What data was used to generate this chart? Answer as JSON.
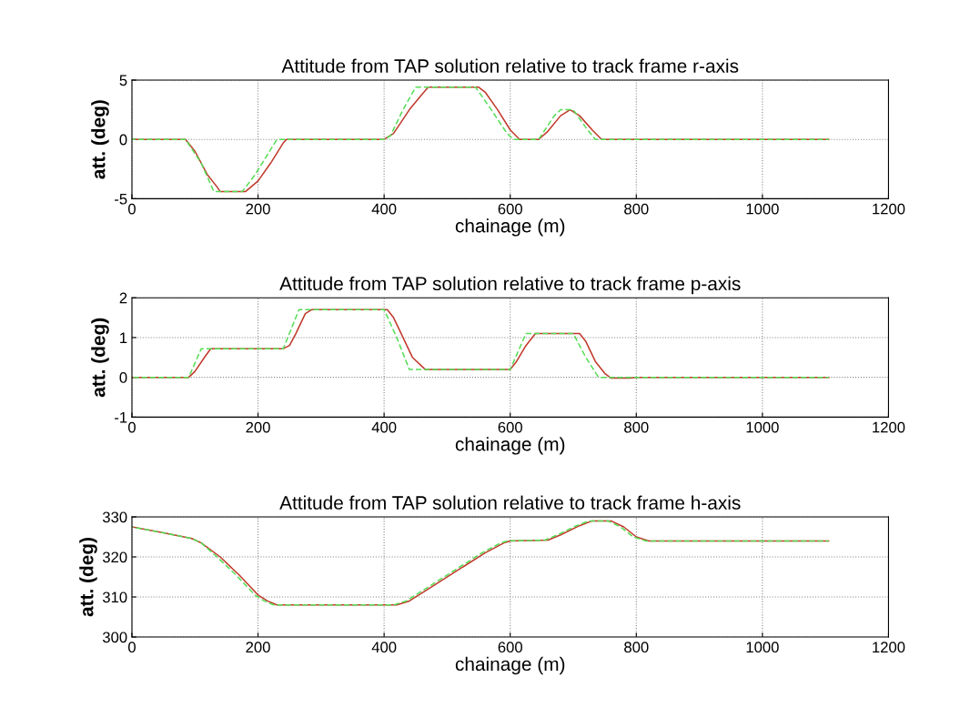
{
  "chart_data": [
    {
      "type": "line",
      "title": "Attitude from TAP solution relative to track frame r-axis",
      "xlabel": "chainage (m)",
      "ylabel": "att. (deg)",
      "xlim": [
        0,
        1200
      ],
      "ylim": [
        -5,
        5
      ],
      "xticks": [
        0,
        200,
        400,
        600,
        800,
        1000,
        1200
      ],
      "yticks": [
        -5,
        0,
        5
      ],
      "grid": true,
      "series": [
        {
          "color": "#c0392b",
          "line_style": "solid",
          "x": [
            0,
            85,
            100,
            120,
            135,
            140,
            180,
            200,
            220,
            240,
            245,
            400,
            415,
            440,
            460,
            470,
            550,
            560,
            580,
            600,
            615,
            645,
            660,
            680,
            695,
            710,
            730,
            745,
            1105
          ],
          "values": [
            0,
            0,
            -1,
            -3,
            -4,
            -4.4,
            -4.4,
            -3.5,
            -2,
            -0.3,
            0,
            0,
            0.5,
            2.5,
            3.8,
            4.4,
            4.4,
            4,
            2.5,
            0.8,
            0,
            0,
            0.7,
            2,
            2.5,
            2,
            0.8,
            0,
            0
          ]
        },
        {
          "color": "#55dd55",
          "line_style": "dashed",
          "x": [
            0,
            85,
            110,
            130,
            175,
            195,
            230,
            400,
            410,
            430,
            450,
            545,
            570,
            595,
            605,
            645,
            670,
            680,
            700,
            720,
            735,
            1105
          ],
          "values": [
            0,
            0,
            -2,
            -4.4,
            -4.4,
            -3,
            0,
            0,
            0.3,
            2.5,
            4.4,
            4.4,
            2.5,
            0.5,
            0,
            0,
            2,
            2.5,
            2.5,
            1,
            0,
            0
          ]
        }
      ]
    },
    {
      "type": "line",
      "title": "Attitude from TAP solution relative to track frame p-axis",
      "xlabel": "chainage (m)",
      "ylabel": "att. (deg)",
      "xlim": [
        0,
        1200
      ],
      "ylim": [
        -1,
        2
      ],
      "xticks": [
        0,
        200,
        400,
        600,
        800,
        1000,
        1200
      ],
      "yticks": [
        -1,
        0,
        1,
        2
      ],
      "grid": true,
      "series": [
        {
          "color": "#c0392b",
          "line_style": "solid",
          "x": [
            0,
            90,
            100,
            115,
            125,
            240,
            250,
            260,
            275,
            285,
            405,
            415,
            430,
            445,
            465,
            600,
            610,
            625,
            640,
            710,
            720,
            735,
            750,
            760,
            790,
            800,
            1105
          ],
          "values": [
            0,
            0,
            0.15,
            0.5,
            0.72,
            0.72,
            0.8,
            1.1,
            1.6,
            1.7,
            1.7,
            1.5,
            1,
            0.5,
            0.2,
            0.2,
            0.4,
            0.8,
            1.1,
            1.1,
            0.9,
            0.4,
            0.1,
            -0.02,
            -0.02,
            0,
            0
          ]
        },
        {
          "color": "#55dd55",
          "line_style": "dashed",
          "x": [
            0,
            90,
            110,
            240,
            265,
            400,
            420,
            440,
            600,
            625,
            700,
            720,
            740,
            1105
          ],
          "values": [
            0,
            0,
            0.72,
            0.72,
            1.7,
            1.7,
            1,
            0.2,
            0.2,
            1.1,
            1.1,
            0.5,
            0,
            0
          ]
        }
      ]
    },
    {
      "type": "line",
      "title": "Attitude from TAP solution relative to track frame h-axis",
      "xlabel": "chainage (m)",
      "ylabel": "att. (deg)",
      "xlim": [
        0,
        1200
      ],
      "ylim": [
        300,
        330
      ],
      "xticks": [
        0,
        200,
        400,
        600,
        800,
        1000,
        1200
      ],
      "yticks": [
        300,
        310,
        320,
        330
      ],
      "grid": true,
      "series": [
        {
          "color": "#c0392b",
          "line_style": "solid",
          "x": [
            0,
            50,
            95,
            110,
            140,
            170,
            200,
            215,
            230,
            420,
            440,
            480,
            520,
            560,
            590,
            600,
            660,
            680,
            710,
            730,
            760,
            780,
            800,
            820,
            1105
          ],
          "values": [
            327.5,
            326,
            324.6,
            323.5,
            320,
            315.5,
            310.5,
            309,
            308,
            308,
            309,
            313,
            317,
            321,
            323.5,
            324,
            324.2,
            325.5,
            327.8,
            329,
            329,
            327.5,
            325,
            324,
            324
          ]
        },
        {
          "color": "#55dd55",
          "line_style": "dashed",
          "x": [
            0,
            50,
            95,
            110,
            135,
            165,
            195,
            210,
            225,
            415,
            435,
            475,
            515,
            555,
            585,
            595,
            655,
            675,
            705,
            725,
            755,
            775,
            795,
            815,
            1105
          ],
          "values": [
            327.5,
            326,
            324.6,
            323.5,
            320,
            315.5,
            310.5,
            309,
            308,
            308,
            309,
            313,
            317,
            321,
            323.5,
            324,
            324.2,
            325.5,
            327.8,
            329,
            329,
            327.5,
            325,
            324,
            324
          ]
        }
      ]
    }
  ]
}
